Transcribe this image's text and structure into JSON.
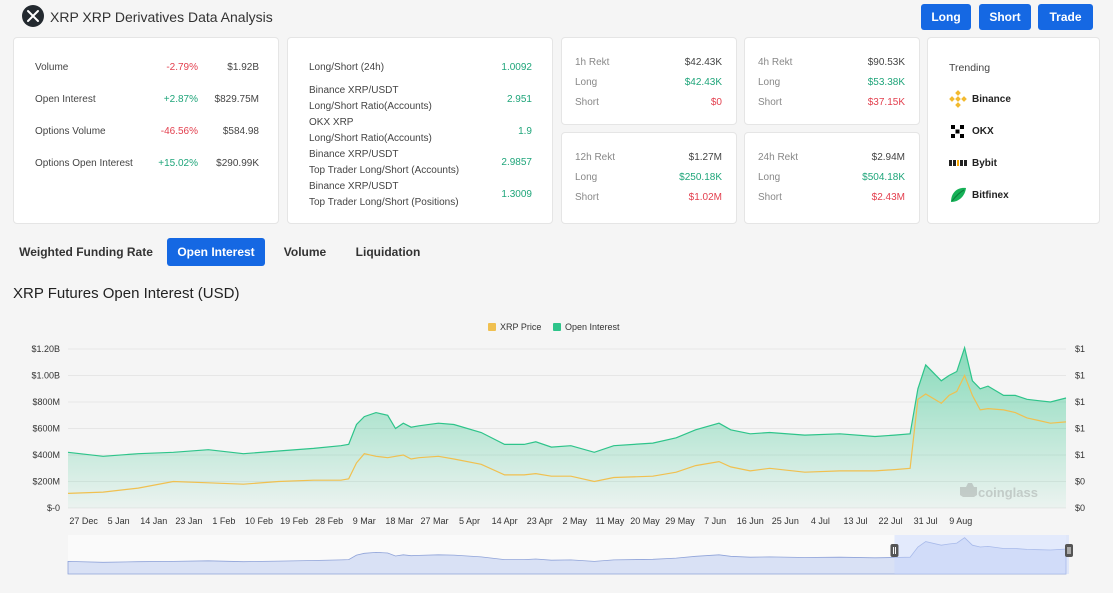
{
  "header": {
    "title": "XRP XRP Derivatives Data Analysis",
    "buttons": {
      "long": "Long",
      "short": "Short",
      "trade": "Trade"
    }
  },
  "stats": [
    {
      "label": "Volume",
      "change": "-2.79%",
      "value": "$1.92B"
    },
    {
      "label": "Open Interest",
      "change": "+2.87%",
      "value": "$829.75M"
    },
    {
      "label": "Options Volume",
      "change": "-46.56%",
      "value": "$584.98"
    },
    {
      "label": "Options Open Interest",
      "change": "+15.02%",
      "value": "$290.99K"
    }
  ],
  "ratios": [
    {
      "line1": "Long/Short (24h)",
      "line2": "",
      "value": "1.0092"
    },
    {
      "line1": "Binance XRP/USDT",
      "line2": "Long/Short Ratio(Accounts)",
      "value": "2.951"
    },
    {
      "line1": "OKX XRP",
      "line2": "Long/Short Ratio(Accounts)",
      "value": "1.9"
    },
    {
      "line1": "Binance XRP/USDT",
      "line2": "Top Trader Long/Short (Accounts)",
      "value": "2.9857"
    },
    {
      "line1": "Binance XRP/USDT",
      "line2": "Top Trader Long/Short (Positions)",
      "value": "1.3009"
    }
  ],
  "rekt": [
    {
      "period": "1h Rekt",
      "total": "$42.43K",
      "long_label": "Long",
      "long": "$42.43K",
      "short_label": "Short",
      "short": "$0"
    },
    {
      "period": "4h Rekt",
      "total": "$90.53K",
      "long_label": "Long",
      "long": "$53.38K",
      "short_label": "Short",
      "short": "$37.15K"
    },
    {
      "period": "12h Rekt",
      "total": "$1.27M",
      "long_label": "Long",
      "long": "$250.18K",
      "short_label": "Short",
      "short": "$1.02M"
    },
    {
      "period": "24h Rekt",
      "total": "$2.94M",
      "long_label": "Long",
      "long": "$504.18K",
      "short_label": "Short",
      "short": "$2.43M"
    }
  ],
  "trending": {
    "title": "Trending",
    "items": [
      {
        "name": "Binance",
        "icon": "binance-icon",
        "color": "#f3ba2f"
      },
      {
        "name": "OKX",
        "icon": "okx-icon",
        "color": "#000000"
      },
      {
        "name": "Bybit",
        "icon": "bybit-icon",
        "color": "#222222"
      },
      {
        "name": "Bitfinex",
        "icon": "bitfinex-icon",
        "color": "#16b157"
      }
    ]
  },
  "tabs": [
    "Weighted Funding Rate",
    "Open Interest",
    "Volume",
    "Liquidation"
  ],
  "active_tab": "Open Interest",
  "chart_title": "XRP Futures Open Interest (USD)",
  "watermark": "coinglass",
  "chart_data": {
    "type": "area",
    "title": "XRP Futures Open Interest (USD)",
    "legend": [
      "XRP Price",
      "Open Interest"
    ],
    "legend_position": "top-center",
    "colors": {
      "price": "#f0c050",
      "open_interest": "#2ec48a"
    },
    "x_tick_labels": [
      "27 Dec",
      "5 Jan",
      "14 Jan",
      "23 Jan",
      "1 Feb",
      "10 Feb",
      "19 Feb",
      "28 Feb",
      "9 Mar",
      "18 Mar",
      "27 Mar",
      "5 Apr",
      "14 Apr",
      "23 Apr",
      "2 May",
      "11 May",
      "20 May",
      "29 May",
      "7 Jun",
      "16 Jun",
      "25 Jun",
      "4 Jul",
      "13 Jul",
      "22 Jul",
      "31 Jul",
      "9 Aug"
    ],
    "y_left_ticks": [
      "$-0",
      "$200M",
      "$400M",
      "$600M",
      "$800M",
      "$1.00B",
      "$1.20B"
    ],
    "y_right_ticks": [
      "$0",
      "$0",
      "$1",
      "$1",
      "$1",
      "$1",
      "$1"
    ],
    "ylim": [
      0,
      1200
    ],
    "y_unit": "M USD",
    "grid": true,
    "series": [
      {
        "name": "Open Interest",
        "key": "open_interest",
        "x_days": [
          0,
          9,
          18,
          27,
          36,
          45,
          54,
          63,
          70,
          72,
          74,
          76,
          79,
          82,
          84,
          86,
          88,
          90,
          95,
          99,
          106,
          112,
          117,
          120,
          124,
          129,
          135,
          140,
          150,
          156,
          161,
          167,
          170,
          175,
          180,
          189,
          198,
          207,
          212,
          216,
          218,
          220,
          224,
          226,
          228,
          230,
          232,
          234,
          236,
          240,
          243,
          246,
          249,
          252,
          256
        ],
        "values": [
          420,
          390,
          410,
          420,
          440,
          410,
          430,
          450,
          470,
          480,
          630,
          690,
          720,
          700,
          600,
          640,
          610,
          620,
          640,
          630,
          570,
          480,
          480,
          500,
          460,
          470,
          420,
          470,
          490,
          530,
          590,
          640,
          590,
          560,
          570,
          550,
          560,
          540,
          550,
          560,
          900,
          1080,
          960,
          1000,
          1030,
          1210,
          960,
          900,
          920,
          850,
          850,
          820,
          810,
          800,
          830
        ]
      },
      {
        "name": "XRP Price",
        "key": "price",
        "x_days": [
          0,
          9,
          18,
          27,
          36,
          45,
          54,
          63,
          70,
          72,
          74,
          76,
          79,
          82,
          84,
          86,
          88,
          90,
          95,
          99,
          106,
          112,
          117,
          120,
          124,
          129,
          135,
          140,
          150,
          156,
          161,
          167,
          170,
          175,
          180,
          189,
          198,
          207,
          212,
          216,
          218,
          220,
          224,
          226,
          228,
          230,
          232,
          234,
          236,
          240,
          243,
          246,
          249,
          252,
          256
        ],
        "values": [
          110,
          120,
          150,
          200,
          190,
          180,
          200,
          210,
          210,
          220,
          340,
          410,
          390,
          380,
          390,
          400,
          370,
          380,
          390,
          370,
          330,
          250,
          250,
          260,
          240,
          240,
          200,
          230,
          240,
          270,
          320,
          350,
          310,
          280,
          300,
          270,
          280,
          280,
          290,
          300,
          820,
          860,
          790,
          850,
          880,
          1000,
          850,
          740,
          750,
          740,
          720,
          680,
          660,
          640,
          650
        ]
      }
    ],
    "x_range_days": [
      0,
      256
    ]
  }
}
